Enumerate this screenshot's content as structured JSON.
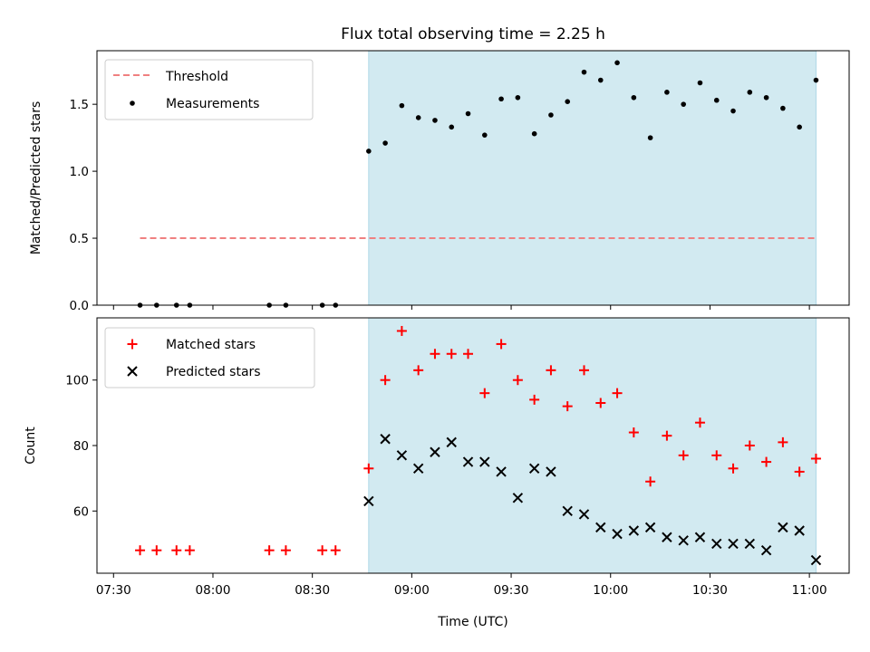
{
  "title": "Flux total observing time = 2.25 h",
  "colors": {
    "threshold": "#f08080",
    "measurement": "#000000",
    "matched": "#ff0000",
    "predicted": "#000000",
    "shade": "#add8e6"
  },
  "chart_data": [
    {
      "type": "scatter",
      "ylabel": "Matched/Predicted stars",
      "ylim": [
        0,
        1.9
      ],
      "yticks": [
        0.0,
        0.5,
        1.0,
        1.5
      ],
      "ytick_labels": [
        "0.0",
        "0.5",
        "1.0",
        "1.5"
      ],
      "xlim": [
        "07:25",
        "11:12"
      ],
      "shaded_range": [
        "08:47",
        "11:02"
      ],
      "legend": {
        "location": "upper left",
        "entries": [
          "Threshold",
          "Measurements"
        ]
      },
      "threshold": {
        "name": "Threshold",
        "value": 0.5,
        "x_range": [
          "07:38",
          "11:02"
        ]
      },
      "series": [
        {
          "name": "Measurements",
          "x": [
            "07:38",
            "07:43",
            "07:49",
            "07:53",
            "08:17",
            "08:22",
            "08:33",
            "08:37",
            "08:47",
            "08:52",
            "08:57",
            "09:02",
            "09:07",
            "09:12",
            "09:17",
            "09:22",
            "09:27",
            "09:32",
            "09:37",
            "09:42",
            "09:47",
            "09:52",
            "09:57",
            "10:02",
            "10:07",
            "10:12",
            "10:17",
            "10:22",
            "10:27",
            "10:32",
            "10:37",
            "10:42",
            "10:47",
            "10:52",
            "10:57",
            "11:02"
          ],
          "y": [
            0,
            0,
            0,
            0,
            0,
            0,
            0,
            0,
            1.15,
            1.21,
            1.49,
            1.4,
            1.38,
            1.33,
            1.43,
            1.27,
            1.54,
            1.55,
            1.28,
            1.42,
            1.52,
            1.74,
            1.68,
            1.81,
            1.55,
            1.25,
            1.59,
            1.5,
            1.66,
            1.53,
            1.45,
            1.59,
            1.55,
            1.47,
            1.33,
            1.68
          ]
        }
      ]
    },
    {
      "type": "scatter",
      "xlabel": "Time (UTC)",
      "ylabel": "Count",
      "ylim": [
        41,
        119
      ],
      "yticks": [
        60,
        80,
        100
      ],
      "ytick_labels": [
        "60",
        "80",
        "100"
      ],
      "xlim": [
        "07:25",
        "11:12"
      ],
      "xticks": [
        "07:30",
        "08:00",
        "08:30",
        "09:00",
        "09:30",
        "10:00",
        "10:30",
        "11:00"
      ],
      "xtick_labels": [
        "07:30",
        "08:00",
        "08:30",
        "09:00",
        "09:30",
        "10:00",
        "10:30",
        "11:00"
      ],
      "shaded_range": [
        "08:47",
        "11:02"
      ],
      "legend": {
        "location": "upper left",
        "entries": [
          "Matched stars",
          "Predicted stars"
        ]
      },
      "series": [
        {
          "name": "Matched stars",
          "marker": "+",
          "x": [
            "07:38",
            "07:43",
            "07:49",
            "07:53",
            "08:17",
            "08:22",
            "08:33",
            "08:37",
            "08:47",
            "08:52",
            "08:57",
            "09:02",
            "09:07",
            "09:12",
            "09:17",
            "09:22",
            "09:27",
            "09:32",
            "09:37",
            "09:42",
            "09:47",
            "09:52",
            "09:57",
            "10:02",
            "10:07",
            "10:12",
            "10:17",
            "10:22",
            "10:27",
            "10:32",
            "10:37",
            "10:42",
            "10:47",
            "10:52",
            "10:57",
            "11:02"
          ],
          "y": [
            48,
            48,
            48,
            48,
            48,
            48,
            48,
            48,
            73,
            100,
            115,
            103,
            108,
            108,
            108,
            96,
            111,
            100,
            94,
            103,
            92,
            103,
            93,
            96,
            84,
            69,
            83,
            77,
            87,
            77,
            73,
            80,
            75,
            81,
            72,
            76
          ]
        },
        {
          "name": "Predicted stars",
          "marker": "x",
          "x": [
            "08:47",
            "08:52",
            "08:57",
            "09:02",
            "09:07",
            "09:12",
            "09:17",
            "09:22",
            "09:27",
            "09:32",
            "09:37",
            "09:42",
            "09:47",
            "09:52",
            "09:57",
            "10:02",
            "10:07",
            "10:12",
            "10:17",
            "10:22",
            "10:27",
            "10:32",
            "10:37",
            "10:42",
            "10:47",
            "10:52",
            "10:57",
            "11:02"
          ],
          "y": [
            63,
            82,
            77,
            73,
            78,
            81,
            75,
            75,
            72,
            64,
            73,
            72,
            60,
            59,
            55,
            53,
            54,
            55,
            52,
            51,
            52,
            50,
            50,
            50,
            48,
            55,
            54,
            45
          ]
        }
      ]
    }
  ]
}
